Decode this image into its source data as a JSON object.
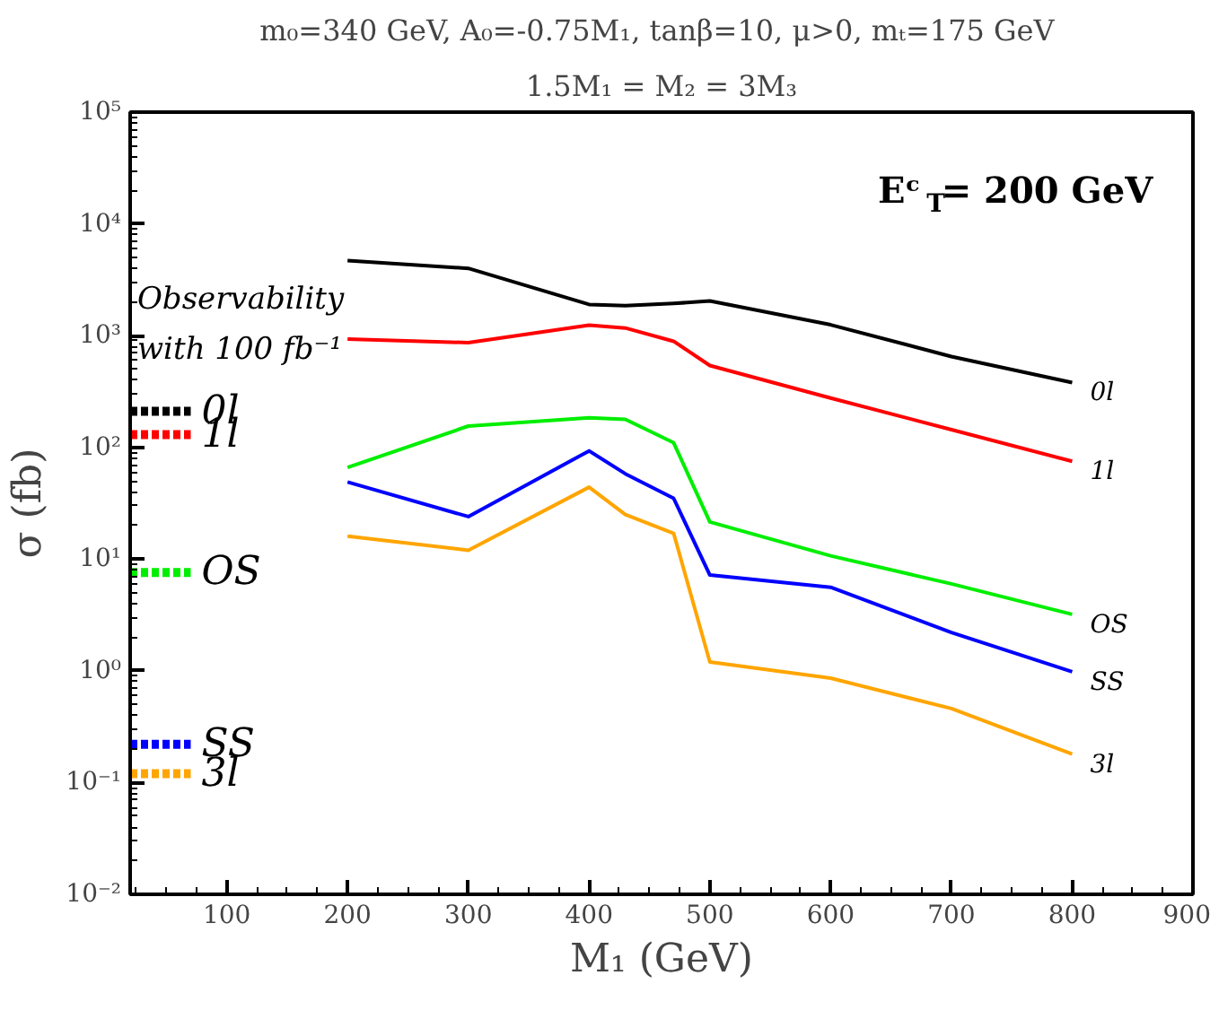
{
  "chart_data": {
    "type": "line",
    "title": "m₀=340 GeV,  A₀=-0.75M₁, tanβ=10, μ>0, mₜ=175 GeV",
    "subtitle": "1.5M₁ = M₂ = 3M₃",
    "xlabel": "M₁ (GeV)",
    "ylabel": "σ (fb)",
    "x": [
      200,
      300,
      400,
      430,
      470,
      500,
      600,
      700,
      800
    ],
    "series": [
      {
        "name": "0l",
        "color": "#000000",
        "values": [
          4700,
          4000,
          1900,
          1850,
          1940,
          2040,
          1250,
          650,
          380
        ]
      },
      {
        "name": "1l",
        "color": "#ff0000",
        "values": [
          930,
          865,
          1240,
          1170,
          890,
          540,
          276,
          144,
          75
        ]
      },
      {
        "name": "OS",
        "color": "#00ee00",
        "values": [
          66,
          155,
          184,
          178,
          110,
          21.5,
          10.7,
          6.0,
          3.2
        ]
      },
      {
        "name": "SS",
        "color": "#0000ff",
        "values": [
          49,
          24,
          93,
          58,
          35,
          7.2,
          5.6,
          2.2,
          0.98
        ]
      },
      {
        "name": "3l",
        "color": "#ffa500",
        "values": [
          16,
          12,
          44,
          25,
          17,
          1.2,
          0.86,
          0.46,
          0.18
        ]
      }
    ],
    "ref_lines": [
      {
        "axis": "y",
        "value": 210,
        "label": "0l",
        "color": "#000000",
        "line_style": "dashed"
      },
      {
        "axis": "y",
        "value": 130,
        "label": "1l",
        "color": "#ff0000",
        "line_style": "dashed"
      },
      {
        "axis": "y",
        "value": 7.6,
        "label": "OS",
        "color": "#00ee00",
        "line_style": "dashed"
      },
      {
        "axis": "y",
        "value": 0.22,
        "label": "SS",
        "color": "#0000ff",
        "line_style": "dashed"
      },
      {
        "axis": "y",
        "value": 0.12,
        "label": "3l",
        "color": "#ffa500",
        "line_style": "dashed"
      }
    ],
    "annotations": [
      "Observability with 100 fb⁻¹",
      "Eᶜ$_{T}$= 200 GeV"
    ],
    "log": "y",
    "grid": false,
    "line_style": "solid",
    "xlim": [
      20,
      900
    ],
    "xticks": [
      100,
      200,
      300,
      400,
      500,
      600,
      700,
      800,
      900
    ],
    "ylim": [
      0.01,
      100000
    ],
    "yticks": [
      {
        "value": 0.01,
        "label": "10⁻²"
      },
      {
        "value": 0.1,
        "label": "10⁻¹"
      },
      {
        "value": 1,
        "label": "10⁰"
      },
      {
        "value": 10,
        "label": "10¹"
      },
      {
        "value": 100,
        "label": "10²"
      },
      {
        "value": 1000,
        "label": "10³"
      },
      {
        "value": 10000,
        "label": "10⁴"
      },
      {
        "value": 100000,
        "label": "10⁵"
      }
    ]
  }
}
